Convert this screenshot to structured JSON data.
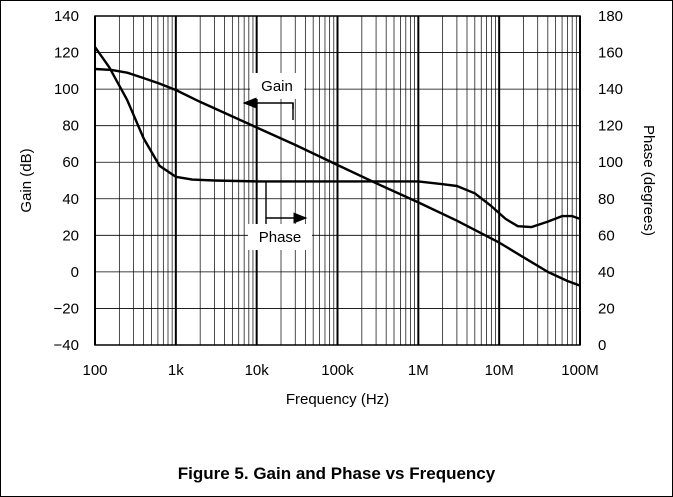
{
  "caption": "Figure 5. Gain and Phase vs Frequency",
  "chart_data": {
    "type": "line",
    "xscale": "log",
    "xlabel": "Frequency (Hz)",
    "ylabel_left": "Gain (dB)",
    "ylabel_right": "Phase (degrees)",
    "xlim": [
      100,
      100000000
    ],
    "ylim_left": [
      -40,
      140
    ],
    "ylim_right": [
      0,
      180
    ],
    "x_ticks": [
      {
        "value": 100,
        "label": "100"
      },
      {
        "value": 1000,
        "label": "1k"
      },
      {
        "value": 10000,
        "label": "10k"
      },
      {
        "value": 100000,
        "label": "100k"
      },
      {
        "value": 1000000,
        "label": "1M"
      },
      {
        "value": 10000000,
        "label": "10M"
      },
      {
        "value": 100000000,
        "label": "100M"
      }
    ],
    "y_ticks_left": [
      -40,
      -20,
      0,
      20,
      40,
      60,
      80,
      100,
      120,
      140
    ],
    "y_ticks_right": [
      0,
      20,
      40,
      60,
      80,
      100,
      120,
      140,
      160,
      180
    ],
    "grid": true,
    "series": [
      {
        "name": "Gain",
        "axis": "left",
        "points": [
          [
            100,
            111
          ],
          [
            160,
            110.5
          ],
          [
            250,
            109
          ],
          [
            400,
            106
          ],
          [
            630,
            103
          ],
          [
            1000,
            99.5
          ],
          [
            2000,
            93
          ],
          [
            4000,
            87
          ],
          [
            10000,
            79
          ],
          [
            30000,
            69.5
          ],
          [
            100000,
            58.5
          ],
          [
            300000,
            48.5
          ],
          [
            1000000,
            38
          ],
          [
            3000000,
            28
          ],
          [
            10000000,
            16
          ],
          [
            20000000,
            8
          ],
          [
            40000000,
            0
          ],
          [
            70000000,
            -5
          ],
          [
            100000000,
            -7.5
          ]
        ]
      },
      {
        "name": "Phase",
        "axis": "right",
        "points": [
          [
            100,
            163
          ],
          [
            150,
            152
          ],
          [
            250,
            134
          ],
          [
            400,
            113
          ],
          [
            630,
            98
          ],
          [
            1000,
            92
          ],
          [
            1600,
            90.5
          ],
          [
            3000,
            90
          ],
          [
            10000,
            89.5
          ],
          [
            100000,
            89.5
          ],
          [
            1000000,
            89.5
          ],
          [
            2000000,
            88
          ],
          [
            3000000,
            87
          ],
          [
            5000000,
            83
          ],
          [
            8000000,
            76
          ],
          [
            12000000,
            69
          ],
          [
            17000000,
            65
          ],
          [
            25000000,
            64.5
          ],
          [
            40000000,
            67.5
          ],
          [
            60000000,
            70.5
          ],
          [
            80000000,
            70.5
          ],
          [
            100000000,
            69
          ]
        ]
      }
    ],
    "annotations": [
      {
        "text": "Gain",
        "target": "Gain"
      },
      {
        "text": "Phase",
        "target": "Phase"
      }
    ]
  }
}
